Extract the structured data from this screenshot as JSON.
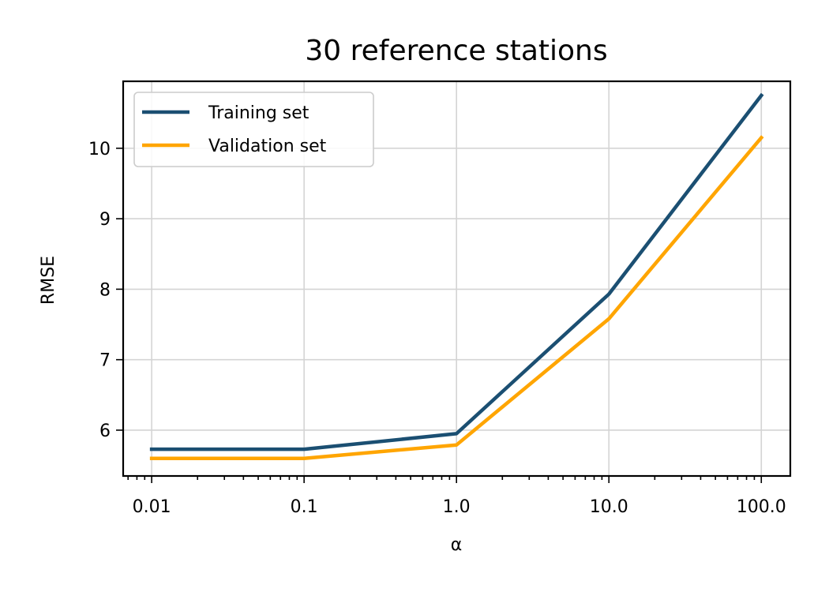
{
  "chart_data": {
    "type": "line",
    "title": "30 reference stations",
    "xlabel": "α",
    "ylabel": "RMSE",
    "x_scale": "log",
    "x": [
      0.01,
      0.1,
      1.0,
      10.0,
      100.0
    ],
    "x_tick_labels": [
      "0.01",
      "0.1",
      "1.0",
      "10.0",
      "100.0"
    ],
    "xlim": [
      0.0065,
      155
    ],
    "ylim": [
      5.35,
      10.95
    ],
    "y_ticks": [
      6,
      7,
      8,
      9,
      10
    ],
    "y_tick_labels": [
      "6",
      "7",
      "8",
      "9",
      "10"
    ],
    "grid": true,
    "legend_position": "top-left",
    "series": [
      {
        "name": "Training set",
        "color": "#1b4f72",
        "values": [
          5.73,
          5.73,
          5.95,
          7.93,
          10.75
        ]
      },
      {
        "name": "Validation set",
        "color": "#ffa500",
        "values": [
          5.6,
          5.6,
          5.79,
          7.58,
          10.15
        ]
      }
    ]
  }
}
